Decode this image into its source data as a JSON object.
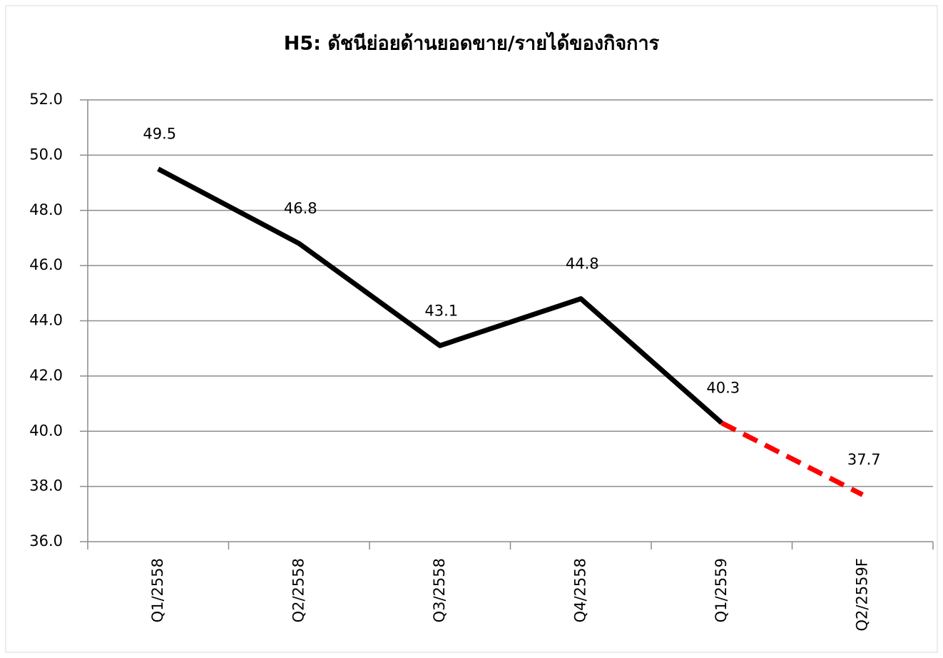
{
  "chart_data": {
    "type": "line",
    "title": "H5: ดัชนีย่อยด้านยอดขาย/รายได้ของกิจการ",
    "categories": [
      "Q1/2558",
      "Q2/2558",
      "Q3/2558",
      "Q4/2558",
      "Q1/2559",
      "Q2/2559F"
    ],
    "series": [
      {
        "color": "#000000",
        "dash": false,
        "values": [
          49.5,
          46.8,
          43.1,
          44.8,
          40.3,
          null
        ]
      },
      {
        "color": "#ff0000",
        "dash": true,
        "values": [
          null,
          null,
          null,
          null,
          40.3,
          37.7
        ]
      }
    ],
    "ylim": [
      36.0,
      52.0
    ],
    "yticks": [
      {
        "value": 36,
        "label": "36.0"
      },
      {
        "value": 38,
        "label": "38.0"
      },
      {
        "value": 40,
        "label": "40.0"
      },
      {
        "value": 42,
        "label": "42.0"
      },
      {
        "value": 44,
        "label": "44.0"
      },
      {
        "value": 46,
        "label": "46.0"
      },
      {
        "value": 48,
        "label": "48.0"
      },
      {
        "value": 50,
        "label": "50.0"
      },
      {
        "value": 52,
        "label": "52.0"
      }
    ],
    "grid": true
  }
}
